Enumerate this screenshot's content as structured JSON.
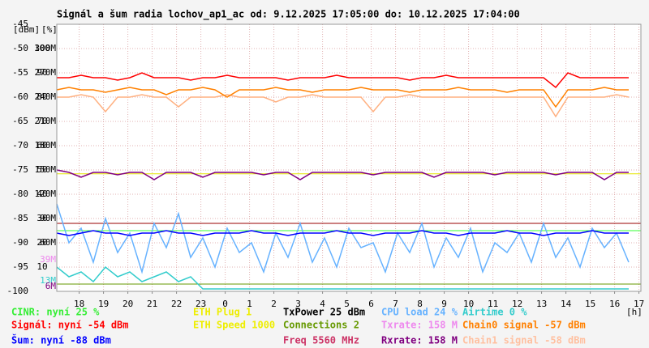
{
  "chart_data": {
    "type": "line",
    "title": "Signál a šum radia lochov_ap1_ac od: 9.12.2025 17:05:00 do: 10.12.2025 17:04:00",
    "y_axis_labels": [
      "[dBm]",
      "[%]"
    ],
    "x_unit": "[h]",
    "xlim": [
      0,
      24
    ],
    "xticks": [
      {
        "value": 0.92,
        "label": "18"
      },
      {
        "value": 1.92,
        "label": "19"
      },
      {
        "value": 2.92,
        "label": "20"
      },
      {
        "value": 3.92,
        "label": "21"
      },
      {
        "value": 4.92,
        "label": "22"
      },
      {
        "value": 5.92,
        "label": "23"
      },
      {
        "value": 6.92,
        "label": "0"
      },
      {
        "value": 7.92,
        "label": "1"
      },
      {
        "value": 8.92,
        "label": "2"
      },
      {
        "value": 9.92,
        "label": "3"
      },
      {
        "value": 10.92,
        "label": "4"
      },
      {
        "value": 11.92,
        "label": "5"
      },
      {
        "value": 12.92,
        "label": "6"
      },
      {
        "value": 13.92,
        "label": "7"
      },
      {
        "value": 14.92,
        "label": "8"
      },
      {
        "value": 15.92,
        "label": "9"
      },
      {
        "value": 16.92,
        "label": "10"
      },
      {
        "value": 17.92,
        "label": "11"
      },
      {
        "value": 18.92,
        "label": "12"
      },
      {
        "value": 19.92,
        "label": "13"
      },
      {
        "value": 20.92,
        "label": "14"
      },
      {
        "value": 21.92,
        "label": "15"
      },
      {
        "value": 22.92,
        "label": "16"
      },
      {
        "value": 23.92,
        "label": "17"
      }
    ],
    "ylim": [
      -100,
      -45
    ],
    "yticks": [
      -45,
      -50,
      -55,
      -60,
      -65,
      -70,
      -75,
      -80,
      -85,
      -90,
      -95,
      -100
    ],
    "y2lim": [
      0,
      110
    ],
    "y2ticks": [
      100,
      90,
      80,
      70,
      60,
      50,
      40,
      30,
      20,
      10
    ],
    "y3lim": [
      0,
      330
    ],
    "y3ticks": [
      {
        "value": 300,
        "label": "300M"
      },
      {
        "value": 270,
        "label": "270M"
      },
      {
        "value": 240,
        "label": "240M"
      },
      {
        "value": 210,
        "label": "210M"
      },
      {
        "value": 180,
        "label": "180M"
      },
      {
        "value": 150,
        "label": "150M"
      },
      {
        "value": 120,
        "label": "120M"
      },
      {
        "value": 90,
        "label": "90M"
      },
      {
        "value": 60,
        "label": "60M"
      }
    ],
    "y3marks": [
      {
        "value": 39,
        "label": "39M",
        "color": "#ee88ee"
      },
      {
        "value": 13,
        "label": "13M",
        "color": "#33cccc"
      },
      {
        "value": 6,
        "label": "6M",
        "color": "#800080"
      }
    ],
    "grid": true,
    "x": [
      0,
      0.5,
      1,
      1.5,
      2,
      2.5,
      3,
      3.5,
      4,
      4.5,
      5,
      5.5,
      6,
      6.5,
      7,
      7.5,
      8,
      8.5,
      9,
      9.5,
      10,
      10.5,
      11,
      11.5,
      12,
      12.5,
      13,
      13.5,
      14,
      14.5,
      15,
      15.5,
      16,
      16.5,
      17,
      17.5,
      18,
      18.5,
      19,
      19.5,
      20,
      20.5,
      21,
      21.5,
      22,
      22.5,
      23,
      23.5
    ],
    "series": [
      {
        "color": "#66b2ff",
        "values": [
          -82,
          -90,
          -87,
          -94,
          -85,
          -92,
          -88,
          -96,
          -86,
          -91,
          -84,
          -93,
          -89,
          -95,
          -87,
          -92,
          -90,
          -96,
          -88,
          -93,
          -86,
          -94,
          -89,
          -95,
          -87,
          -91,
          -90,
          -96,
          -88,
          -92,
          -86,
          -95,
          -89,
          -93,
          -87,
          -96,
          -90,
          -92,
          -88,
          -94,
          -86,
          -93,
          -89,
          -95,
          -87,
          -91,
          -88,
          -94
        ]
      },
      {
        "color": "#33cccc",
        "values": [
          -95,
          -97,
          -96,
          -98,
          -95,
          -97,
          -96,
          -98,
          -97,
          -96,
          -98,
          -97,
          -99.5,
          -99.5,
          -99.5,
          -99.5,
          -99.5,
          -99.5,
          -99.5,
          -99.5,
          -99.5,
          -99.5,
          -99.5,
          -99.5,
          -99.5,
          -99.5,
          -99.5,
          -99.5,
          -99.5,
          -99.5,
          -99.5,
          -99.5,
          -99.5,
          -99.5,
          -99.5,
          -99.5,
          -99.5,
          -99.5,
          -99.5,
          -99.5,
          -99.5,
          -99.5,
          -99.5,
          -99.5,
          -99.5,
          -99.5,
          -99.5,
          -99.5
        ]
      },
      {
        "color": "#0000ff",
        "values": [
          -88,
          -88.5,
          -88,
          -87.5,
          -88,
          -88,
          -88.5,
          -88,
          -88,
          -87.5,
          -88,
          -88,
          -88.5,
          -88,
          -88,
          -88,
          -87.5,
          -88,
          -88,
          -88.5,
          -88,
          -88,
          -88,
          -87.5,
          -88,
          -88,
          -88.5,
          -88,
          -88,
          -88,
          -87.5,
          -88,
          -88,
          -88.5,
          -88,
          -88,
          -88,
          -87.5,
          -88,
          -88,
          -88.5,
          -88,
          -88,
          -88,
          -87.5,
          -88,
          -88,
          -88
        ]
      },
      {
        "color": "#800080",
        "values": [
          -75,
          -75.5,
          -76.5,
          -75.5,
          -75.5,
          -76,
          -75.5,
          -75.5,
          -77,
          -75.5,
          -75.5,
          -75.5,
          -76.5,
          -75.5,
          -75.5,
          -75.5,
          -75.5,
          -76,
          -75.5,
          -75.5,
          -77,
          -75.5,
          -75.5,
          -75.5,
          -75.5,
          -75.5,
          -76,
          -75.5,
          -75.5,
          -75.5,
          -75.5,
          -76.5,
          -75.5,
          -75.5,
          -75.5,
          -75.5,
          -76,
          -75.5,
          -75.5,
          -75.5,
          -75.5,
          -76,
          -75.5,
          -75.5,
          -75.5,
          -77,
          -75.5,
          -75.5
        ]
      },
      {
        "color": "#ffb080",
        "values": [
          -60,
          -60,
          -59.5,
          -60,
          -63,
          -60,
          -60,
          -59.5,
          -60,
          -60,
          -62,
          -60,
          -60,
          -60,
          -59.5,
          -60,
          -60,
          -60,
          -61,
          -60,
          -60,
          -59.5,
          -60,
          -60,
          -60,
          -60,
          -63,
          -60,
          -60,
          -59.5,
          -60,
          -60,
          -60,
          -60,
          -60,
          -60,
          -60,
          -60,
          -60,
          -60,
          -60,
          -64,
          -60,
          -60,
          -60,
          -60,
          -59.5,
          -60
        ]
      },
      {
        "color": "#ff8000",
        "values": [
          -58.5,
          -58,
          -58.5,
          -58.5,
          -59,
          -58.5,
          -58,
          -58.5,
          -58.5,
          -59.5,
          -58.5,
          -58.5,
          -58,
          -58.5,
          -60,
          -58.5,
          -58.5,
          -58.5,
          -58,
          -58.5,
          -58.5,
          -59,
          -58.5,
          -58.5,
          -58.5,
          -58,
          -58.5,
          -58.5,
          -58.5,
          -59,
          -58.5,
          -58.5,
          -58.5,
          -58,
          -58.5,
          -58.5,
          -58.5,
          -59,
          -58.5,
          -58.5,
          -58.5,
          -62,
          -58.5,
          -58.5,
          -58.5,
          -58,
          -58.5,
          -58.5
        ]
      },
      {
        "color": "#ff0000",
        "values": [
          -56,
          -56,
          -55.5,
          -56,
          -56,
          -56.5,
          -56,
          -55,
          -56,
          -56,
          -56,
          -56.5,
          -56,
          -56,
          -55.5,
          -56,
          -56,
          -56,
          -56,
          -56.5,
          -56,
          -56,
          -56,
          -55.5,
          -56,
          -56,
          -56,
          -56,
          -56,
          -56.5,
          -56,
          -56,
          -55.5,
          -56,
          -56,
          -56,
          -56,
          -56,
          -56,
          -56,
          -56,
          -58,
          -55,
          -56,
          -56,
          -56,
          -56,
          -56
        ]
      }
    ],
    "hlines": [
      {
        "value": -75.8,
        "color": "#e6e600"
      },
      {
        "value": -86,
        "color": "#990000"
      },
      {
        "value": -87.5,
        "color": "#33ff33"
      },
      {
        "value": -98.5,
        "color": "#669900"
      }
    ],
    "legend": [
      [
        {
          "text": "CINR: nyní 25 %",
          "color": "#33ee33"
        },
        {
          "text": "Signál: nyní -54 dBm",
          "color": "#ff0000"
        },
        {
          "text": "Šum: nyní -88 dBm",
          "color": "#0000ff"
        }
      ],
      [
        {
          "text": "ETH Plug 1",
          "color": "#eeee00"
        },
        {
          "text": "ETH Speed 1000",
          "color": "#eeee00"
        }
      ],
      [
        {
          "text": "TxPower 25 dBm",
          "color": "#000000"
        },
        {
          "text": "Connections 2",
          "color": "#669900"
        },
        {
          "text": "Freq 5560 MHz",
          "color": "#cc3366"
        }
      ],
      [
        {
          "text": "CPU load 24 %",
          "color": "#66b2ff"
        },
        {
          "text": "Txrate: 158 M",
          "color": "#ee88ee"
        },
        {
          "text": "Rxrate: 158 M",
          "color": "#800080"
        }
      ],
      [
        {
          "text": "Airtime 0 %",
          "color": "#33cccc"
        },
        {
          "text": "Chain0 signal -57 dBm",
          "color": "#ff8000"
        },
        {
          "text": "Chain1 signal -58 dBm",
          "color": "#ffc0a0"
        }
      ]
    ]
  }
}
